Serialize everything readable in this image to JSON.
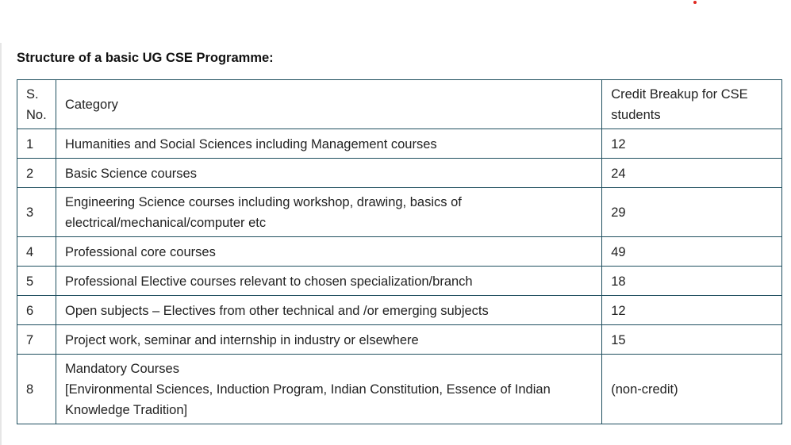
{
  "page": {
    "heading": "Structure of a basic UG CSE Programme:"
  },
  "table": {
    "headers": {
      "sno": "S. No.",
      "category": "Category",
      "credit": "Credit Breakup for CSE students"
    },
    "rows": [
      {
        "sno": "1",
        "category": "Humanities and Social Sciences including Management courses",
        "credit": "12"
      },
      {
        "sno": "2",
        "category": "Basic Science courses",
        "credit": "24"
      },
      {
        "sno": "3",
        "category": "Engineering Science courses including workshop, drawing, basics of electrical/mechanical/computer etc",
        "credit": "29"
      },
      {
        "sno": "4",
        "category": "Professional core courses",
        "credit": "49"
      },
      {
        "sno": "5",
        "category": "Professional Elective courses relevant to chosen specialization/branch",
        "credit": "18"
      },
      {
        "sno": "6",
        "category": "Open subjects – Electives from other technical and /or emerging subjects",
        "credit": "12"
      },
      {
        "sno": "7",
        "category": "Project work, seminar and internship in industry or elsewhere",
        "credit": "15"
      },
      {
        "sno": "8",
        "category_title": "Mandatory Courses",
        "category_detail": "[Environmental Sciences, Induction Program, Indian Constitution, Essence of Indian Knowledge Tradition]",
        "credit": "(non-credit)"
      }
    ]
  },
  "colors": {
    "border": "#1f4f5f",
    "text": "#222222",
    "accent_dot": "#e0271f"
  }
}
